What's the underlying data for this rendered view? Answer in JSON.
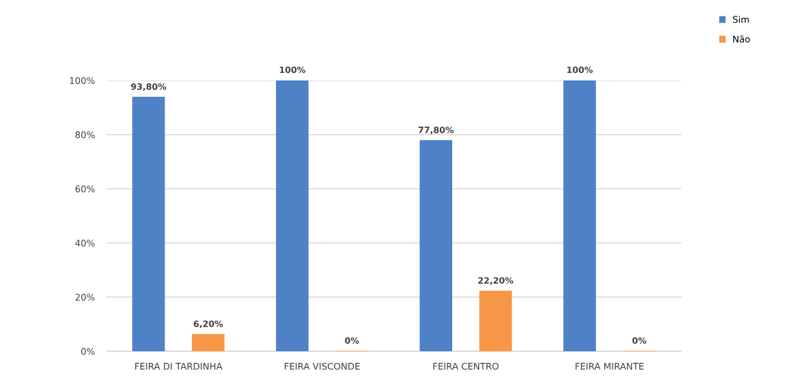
{
  "chart_data": {
    "type": "bar",
    "categories": [
      "FEIRA DI TARDINHA",
      "FEIRA VISCONDE",
      "FEIRA CENTRO",
      "FEIRA MIRANTE"
    ],
    "series": [
      {
        "name": "Sim",
        "color": "#4f81c7",
        "values": [
          93.8,
          100,
          77.8,
          100
        ],
        "value_labels": [
          "93,80%",
          "100%",
          "77,80%",
          "100%"
        ]
      },
      {
        "name": "Não",
        "color": "#f79646",
        "values": [
          6.2,
          0,
          22.2,
          0
        ],
        "value_labels": [
          "6,20%",
          "0%",
          "22,20%",
          "0%"
        ]
      }
    ],
    "ylim": [
      0,
      100
    ],
    "yticks": [
      {
        "value": 0,
        "label": "0%"
      },
      {
        "value": 20,
        "label": "20%"
      },
      {
        "value": 40,
        "label": "40%"
      },
      {
        "value": 60,
        "label": "60%"
      },
      {
        "value": 80,
        "label": "80%"
      },
      {
        "value": 100,
        "label": "100%"
      }
    ],
    "grid": "y",
    "legend": "top right"
  }
}
